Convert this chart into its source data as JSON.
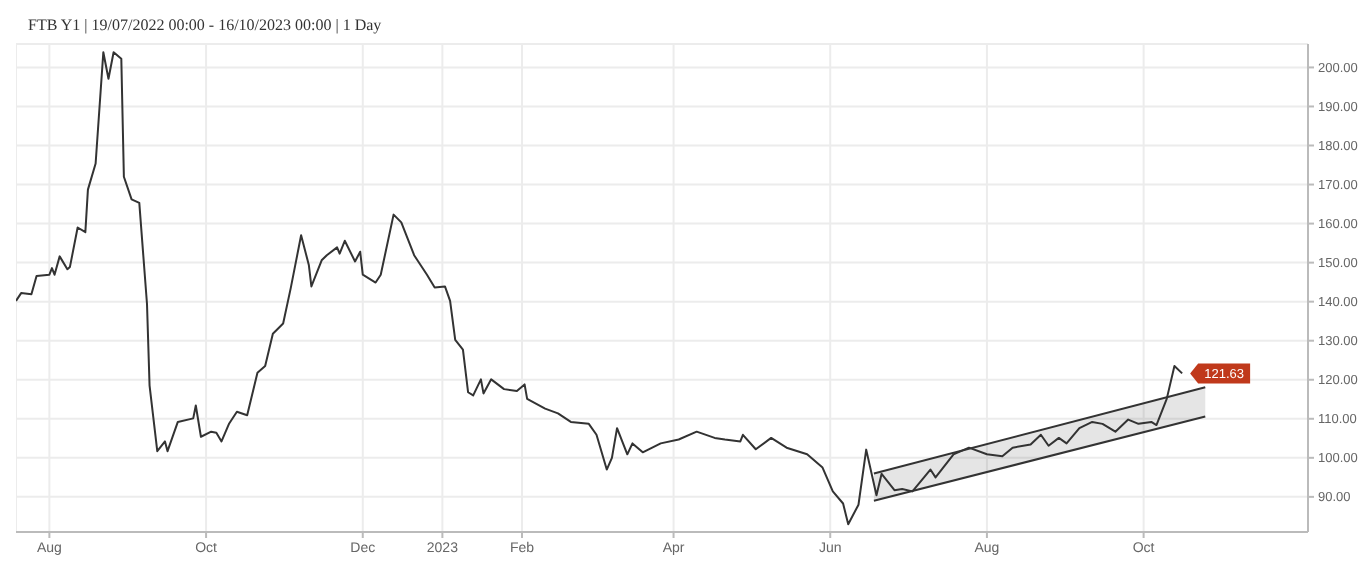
{
  "chart_data": {
    "type": "line",
    "title": "FTB Y1 | 19/07/2022 00:00 - 16/10/2023 00:00 | 1 Day",
    "xlim": [
      "2022-07-19",
      "2023-12-04"
    ],
    "xticks": [
      {
        "value": "2022-08-01",
        "label": "Aug"
      },
      {
        "value": "2022-10-01",
        "label": "Oct"
      },
      {
        "value": "2022-12-01",
        "label": "Dec"
      },
      {
        "value": "2023-01-01",
        "label": "2023"
      },
      {
        "value": "2023-02-01",
        "label": "Feb"
      },
      {
        "value": "2023-04-01",
        "label": "Apr"
      },
      {
        "value": "2023-06-01",
        "label": "Jun"
      },
      {
        "value": "2023-08-01",
        "label": "Aug"
      },
      {
        "value": "2023-10-01",
        "label": "Oct"
      }
    ],
    "ylim": [
      81,
      206
    ],
    "yticks": [
      {
        "value": 90,
        "label": "90.00"
      },
      {
        "value": 100,
        "label": "100.00"
      },
      {
        "value": 110,
        "label": "110.00"
      },
      {
        "value": 120,
        "label": "120.00"
      },
      {
        "value": 130,
        "label": "130.00"
      },
      {
        "value": 140,
        "label": "140.00"
      },
      {
        "value": 150,
        "label": "150.00"
      },
      {
        "value": 160,
        "label": "160.00"
      },
      {
        "value": 170,
        "label": "170.00"
      },
      {
        "value": 180,
        "label": "180.00"
      },
      {
        "value": 190,
        "label": "190.00"
      },
      {
        "value": 200,
        "label": "200.00"
      }
    ],
    "grid": true,
    "annotations": [
      "121.63"
    ],
    "series": [
      {
        "color": "#333333",
        "x": [
          "2022-07-19",
          "2022-07-21",
          "2022-07-25",
          "2022-07-27",
          "2022-08-01",
          "2022-08-02",
          "2022-08-03",
          "2022-08-05",
          "2022-08-08",
          "2022-08-09",
          "2022-08-12",
          "2022-08-15",
          "2022-08-16",
          "2022-08-19",
          "2022-08-22",
          "2022-08-24",
          "2022-08-26",
          "2022-08-29",
          "2022-08-30",
          "2022-09-02",
          "2022-09-05",
          "2022-09-08",
          "2022-09-09",
          "2022-09-12",
          "2022-09-15",
          "2022-09-16",
          "2022-09-20",
          "2022-09-26",
          "2022-09-27",
          "2022-09-29",
          "2022-10-03",
          "2022-10-05",
          "2022-10-07",
          "2022-10-10",
          "2022-10-13",
          "2022-10-17",
          "2022-10-21",
          "2022-10-24",
          "2022-10-27",
          "2022-10-31",
          "2022-11-03",
          "2022-11-07",
          "2022-11-10",
          "2022-11-11",
          "2022-11-15",
          "2022-11-17",
          "2022-11-21",
          "2022-11-22",
          "2022-11-24",
          "2022-11-28",
          "2022-11-30",
          "2022-12-01",
          "2022-12-06",
          "2022-12-08",
          "2022-12-13",
          "2022-12-16",
          "2022-12-21",
          "2022-12-26",
          "2022-12-29",
          "2023-01-02",
          "2023-01-04",
          "2023-01-06",
          "2023-01-09",
          "2023-01-11",
          "2023-01-13",
          "2023-01-16",
          "2023-01-17",
          "2023-01-20",
          "2023-01-25",
          "2023-01-30",
          "2023-02-02",
          "2023-02-03",
          "2023-02-10",
          "2023-02-15",
          "2023-02-20",
          "2023-02-27",
          "2023-03-02",
          "2023-03-06",
          "2023-03-08",
          "2023-03-10",
          "2023-03-14",
          "2023-03-16",
          "2023-03-20",
          "2023-03-27",
          "2023-04-03",
          "2023-04-10",
          "2023-04-17",
          "2023-04-21",
          "2023-04-27",
          "2023-04-28",
          "2023-05-03",
          "2023-05-09",
          "2023-05-15",
          "2023-05-23",
          "2023-05-29",
          "2023-06-02",
          "2023-06-06",
          "2023-06-08",
          "2023-06-12",
          "2023-06-15",
          "2023-06-19",
          "2023-06-21",
          "2023-06-26",
          "2023-06-29",
          "2023-07-03",
          "2023-07-10",
          "2023-07-12",
          "2023-07-19",
          "2023-07-25",
          "2023-08-01",
          "2023-08-07",
          "2023-08-11",
          "2023-08-18",
          "2023-08-22",
          "2023-08-25",
          "2023-08-29",
          "2023-09-01",
          "2023-09-06",
          "2023-09-11",
          "2023-09-15",
          "2023-09-20",
          "2023-09-25",
          "2023-09-29",
          "2023-10-04",
          "2023-10-06",
          "2023-10-10",
          "2023-10-13",
          "2023-10-16"
        ],
        "values": [
          140.2,
          142.2,
          141.9,
          146.6,
          146.9,
          148.6,
          146.9,
          151.6,
          148.3,
          148.9,
          159.0,
          157.8,
          168.7,
          175.4,
          203.9,
          197.1,
          203.9,
          202.2,
          172.0,
          166.2,
          165.3,
          139.4,
          118.5,
          101.7,
          104.2,
          101.7,
          109.2,
          110.1,
          113.4,
          105.4,
          106.7,
          106.4,
          104.2,
          108.8,
          111.8,
          110.9,
          121.8,
          123.5,
          131.8,
          134.4,
          143.6,
          157.0,
          149.4,
          143.9,
          150.6,
          151.9,
          153.9,
          152.3,
          155.6,
          150.3,
          152.8,
          146.9,
          144.9,
          146.9,
          162.3,
          160.3,
          151.9,
          146.9,
          143.6,
          143.9,
          140.2,
          130.2,
          127.7,
          116.8,
          116.0,
          120.1,
          116.5,
          120.1,
          117.6,
          117.1,
          118.8,
          115.1,
          112.6,
          111.4,
          109.2,
          108.7,
          105.9,
          97.0,
          100.0,
          107.6,
          100.9,
          103.7,
          101.4,
          103.7,
          104.7,
          106.7,
          105.1,
          104.7,
          104.2,
          105.9,
          102.2,
          105.1,
          102.6,
          100.9,
          97.5,
          91.4,
          88.3,
          83.0,
          88.0,
          102.1,
          90.4,
          95.9,
          91.7,
          92.0,
          91.4,
          97.0,
          95.0,
          100.9,
          102.6,
          100.9,
          100.4,
          102.6,
          103.4,
          105.9,
          103.1,
          105.1,
          103.7,
          107.6,
          109.2,
          108.7,
          106.7,
          109.8,
          108.7,
          109.2,
          108.4,
          115.1,
          123.5,
          121.63
        ]
      },
      {
        "type": "line",
        "color": "#333333",
        "x": [
          "2023-06-18",
          "2023-10-25"
        ],
        "values": [
          96.0,
          118.1
        ],
        "lower": [
          89.0,
          110.6
        ],
        "upper": [
          96.0,
          118.1
        ]
      },
      {
        "type": "line",
        "color": "#333333",
        "x": [
          "2023-06-18",
          "2023-10-25"
        ],
        "values": [
          89.0,
          110.6
        ]
      }
    ]
  }
}
